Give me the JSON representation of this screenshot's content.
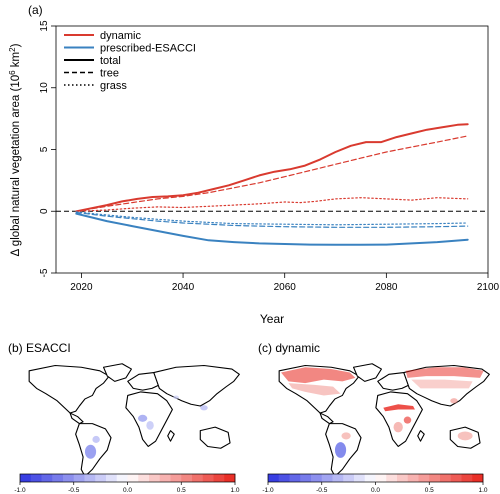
{
  "panel_a": {
    "label": "(a)",
    "xlabel": "Year",
    "ylabel_main": "Δ global natural vegetation area (10",
    "ylabel_exp1": "6",
    "ylabel_mid": " km",
    "ylabel_exp2": "2",
    "ylabel_end": ")",
    "legend": [
      {
        "label": "dynamic",
        "color": "#d93a2f",
        "dash": "solid",
        "width": 2
      },
      {
        "label": "prescribed-ESACCI",
        "color": "#3a82c0",
        "dash": "solid",
        "width": 2
      },
      {
        "label": "total",
        "color": "#000000",
        "dash": "solid",
        "width": 2
      },
      {
        "label": "tree",
        "color": "#000000",
        "dash": "dashed",
        "width": 1.5
      },
      {
        "label": "grass",
        "color": "#000000",
        "dash": "dotted",
        "width": 1.5
      }
    ]
  },
  "panel_b": {
    "label": "(b) ESACCI"
  },
  "panel_c": {
    "label": "(c) dynamic"
  },
  "colorbar": {
    "ticks": [
      "-1.0",
      "-0.5",
      "0.0",
      "0.5",
      "1.0"
    ],
    "tick_values": [
      -1,
      -0.5,
      0,
      0.5,
      1
    ],
    "colors": {
      "low": "#2d34e0",
      "mid": "#ffffff",
      "high": "#e8241c"
    },
    "n_cells": 20
  },
  "chart_data": [
    {
      "type": "line",
      "title": "",
      "xlabel": "Year",
      "ylabel": "Δ global natural vegetation area (10^6 km^2)",
      "xlim": [
        2015,
        2100
      ],
      "ylim": [
        -5,
        15
      ],
      "xticks": [
        2020,
        2040,
        2060,
        2080,
        2100
      ],
      "yticks": [
        -5,
        0,
        5,
        10,
        15
      ],
      "reference_line": {
        "y": 0,
        "style": "dashed",
        "color": "#000000"
      },
      "series": [
        {
          "name": "dynamic total",
          "color": "#d93a2f",
          "dash": "solid",
          "width": 2,
          "x": [
            2019,
            2022,
            2025,
            2028,
            2031,
            2034,
            2037,
            2040,
            2043,
            2046,
            2049,
            2052,
            2055,
            2058,
            2061,
            2064,
            2067,
            2070,
            2073,
            2076,
            2079,
            2082,
            2085,
            2088,
            2091,
            2094,
            2096
          ],
          "y": [
            0,
            0.25,
            0.5,
            0.8,
            1.0,
            1.15,
            1.2,
            1.3,
            1.5,
            1.8,
            2.1,
            2.5,
            2.9,
            3.2,
            3.4,
            3.7,
            4.2,
            4.8,
            5.3,
            5.6,
            5.6,
            6.0,
            6.3,
            6.6,
            6.8,
            7.0,
            7.05
          ]
        },
        {
          "name": "dynamic tree",
          "color": "#d93a2f",
          "dash": "dashed",
          "width": 1.2,
          "x": [
            2019,
            2025,
            2030,
            2035,
            2040,
            2045,
            2050,
            2055,
            2060,
            2065,
            2070,
            2075,
            2080,
            2085,
            2090,
            2096
          ],
          "y": [
            0,
            0.4,
            0.7,
            1.0,
            1.2,
            1.5,
            1.9,
            2.3,
            2.8,
            3.3,
            3.8,
            4.3,
            4.8,
            5.2,
            5.6,
            6.1
          ]
        },
        {
          "name": "dynamic grass",
          "color": "#d93a2f",
          "dash": "dotted",
          "width": 1.2,
          "x": [
            2019,
            2025,
            2030,
            2035,
            2040,
            2045,
            2050,
            2055,
            2060,
            2063,
            2066,
            2070,
            2075,
            2080,
            2085,
            2090,
            2096
          ],
          "y": [
            0,
            0.1,
            0.25,
            0.35,
            0.3,
            0.4,
            0.5,
            0.6,
            0.75,
            0.7,
            0.8,
            1.0,
            1.1,
            1.0,
            0.9,
            1.1,
            1.0
          ]
        },
        {
          "name": "prescribed-ESACCI total",
          "color": "#3a82c0",
          "dash": "solid",
          "width": 2,
          "x": [
            2019,
            2022,
            2025,
            2030,
            2035,
            2040,
            2045,
            2050,
            2055,
            2060,
            2065,
            2070,
            2075,
            2080,
            2085,
            2090,
            2096
          ],
          "y": [
            -0.2,
            -0.5,
            -0.8,
            -1.2,
            -1.6,
            -2.0,
            -2.35,
            -2.5,
            -2.6,
            -2.65,
            -2.7,
            -2.72,
            -2.72,
            -2.7,
            -2.6,
            -2.5,
            -2.3
          ]
        },
        {
          "name": "prescribed-ESACCI tree",
          "color": "#3a82c0",
          "dash": "dashed",
          "width": 1.2,
          "x": [
            2019,
            2025,
            2030,
            2035,
            2040,
            2045,
            2050,
            2055,
            2060,
            2070,
            2080,
            2090,
            2096
          ],
          "y": [
            -0.1,
            -0.4,
            -0.6,
            -0.8,
            -0.95,
            -1.05,
            -1.15,
            -1.2,
            -1.25,
            -1.3,
            -1.3,
            -1.25,
            -1.2
          ]
        },
        {
          "name": "prescribed-ESACCI grass",
          "color": "#3a82c0",
          "dash": "dotted",
          "width": 1.2,
          "x": [
            2019,
            2025,
            2030,
            2035,
            2040,
            2045,
            2050,
            2060,
            2070,
            2080,
            2090,
            2096
          ],
          "y": [
            -0.05,
            -0.3,
            -0.5,
            -0.65,
            -0.8,
            -0.9,
            -1.0,
            -1.05,
            -1.1,
            -1.05,
            -1.0,
            -0.95
          ]
        }
      ]
    },
    {
      "type": "heatmap",
      "title": "(b) ESACCI",
      "colorbar_range": [
        -1,
        1
      ]
    },
    {
      "type": "heatmap",
      "title": "(c) dynamic",
      "colorbar_range": [
        -1,
        1
      ]
    }
  ]
}
